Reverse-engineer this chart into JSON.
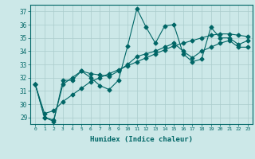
{
  "xlabel": "Humidex (Indice chaleur)",
  "xlim": [
    -0.5,
    23.5
  ],
  "ylim": [
    28.5,
    37.5
  ],
  "yticks": [
    29,
    30,
    31,
    32,
    33,
    34,
    35,
    36,
    37
  ],
  "xticks": [
    0,
    1,
    2,
    3,
    4,
    5,
    6,
    7,
    8,
    9,
    10,
    11,
    12,
    13,
    14,
    15,
    16,
    17,
    18,
    19,
    20,
    21,
    22,
    23
  ],
  "bg_color": "#cce8e8",
  "grid_color": "#aacccc",
  "line_color": "#006666",
  "series": [
    [
      31.5,
      29.0,
      28.7,
      31.8,
      31.8,
      32.5,
      32.0,
      31.4,
      31.1,
      31.8,
      34.4,
      37.2,
      35.8,
      34.6,
      35.9,
      36.0,
      33.8,
      33.2,
      33.4,
      35.8,
      35.0,
      35.0,
      34.5,
      34.8
    ],
    [
      31.5,
      29.0,
      28.8,
      31.5,
      32.0,
      32.5,
      32.3,
      32.2,
      32.1,
      32.5,
      33.0,
      33.6,
      33.8,
      34.0,
      34.3,
      34.6,
      34.0,
      33.5,
      34.0,
      34.3,
      34.6,
      34.8,
      34.3,
      34.3
    ],
    [
      31.5,
      29.3,
      29.5,
      30.2,
      30.7,
      31.2,
      31.7,
      32.0,
      32.3,
      32.6,
      32.9,
      33.2,
      33.5,
      33.8,
      34.1,
      34.4,
      34.6,
      34.8,
      35.0,
      35.2,
      35.3,
      35.3,
      35.2,
      35.1
    ]
  ]
}
